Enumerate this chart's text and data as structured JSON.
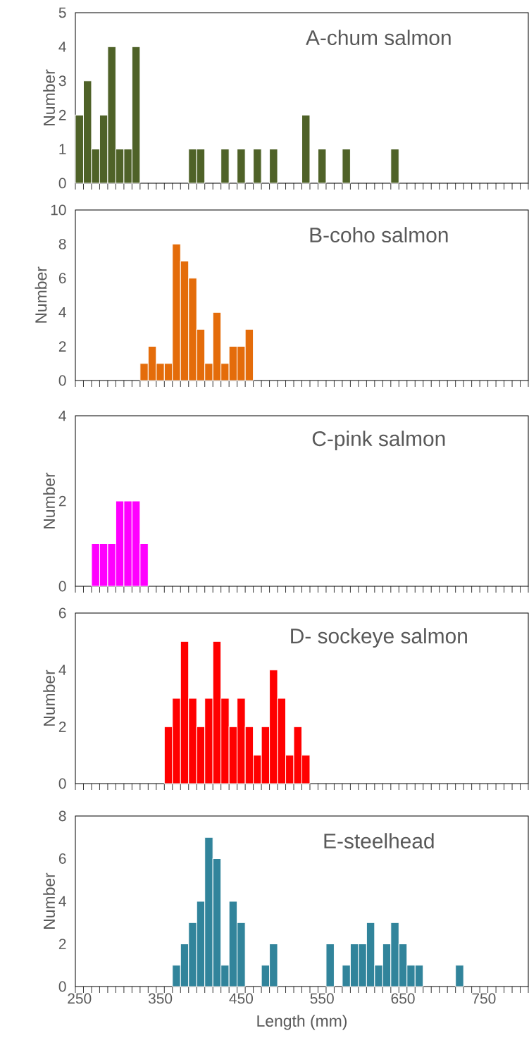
{
  "chart_data": [
    {
      "type": "bar",
      "title": "A-chum salmon",
      "ylabel": "Number",
      "color": "#4f6228",
      "tick_labels": "y",
      "categories": [
        "250",
        null,
        null,
        null,
        null,
        null,
        null,
        null,
        null,
        null,
        "350",
        null,
        null,
        null,
        null,
        null,
        null,
        null,
        null,
        null,
        "450",
        null,
        null,
        null,
        null,
        null,
        null,
        null,
        null,
        null,
        "550",
        null,
        null,
        null,
        null,
        null,
        null,
        null,
        null,
        null,
        "650",
        null,
        null,
        null,
        null,
        null,
        null,
        null,
        null,
        null,
        "750",
        null,
        null,
        null,
        null,
        null
      ],
      "values": [
        2,
        3,
        1,
        2,
        4,
        1,
        1,
        4,
        0,
        0,
        0,
        0,
        0,
        0,
        1,
        1,
        0,
        0,
        1,
        0,
        1,
        0,
        1,
        0,
        1,
        0,
        0,
        0,
        2,
        0,
        1,
        0,
        0,
        1,
        0,
        0,
        0,
        0,
        0,
        1,
        0,
        0,
        0,
        0,
        0,
        0,
        0,
        0,
        0,
        0,
        0,
        0,
        0,
        0,
        0,
        0
      ],
      "ylim": [
        0,
        5
      ],
      "yticks": [
        0,
        1,
        2,
        3,
        4,
        5
      ]
    },
    {
      "type": "bar",
      "title": "B-coho salmon",
      "ylabel": "Number",
      "color": "#e46c0a",
      "tick_labels": "y",
      "categories": [
        "250",
        null,
        null,
        null,
        null,
        null,
        null,
        null,
        null,
        null,
        "350",
        null,
        null,
        null,
        null,
        null,
        null,
        null,
        null,
        null,
        "450",
        null,
        null,
        null,
        null,
        null,
        null,
        null,
        null,
        null,
        "550",
        null,
        null,
        null,
        null,
        null,
        null,
        null,
        null,
        null,
        "650",
        null,
        null,
        null,
        null,
        null,
        null,
        null,
        null,
        null,
        "750",
        null,
        null,
        null,
        null,
        null
      ],
      "values": [
        0,
        0,
        0,
        0,
        0,
        0,
        0,
        0,
        1,
        2,
        1,
        1,
        8,
        7,
        6,
        3,
        1,
        4,
        1,
        2,
        2,
        3,
        0,
        0,
        0,
        0,
        0,
        0,
        0,
        0,
        0,
        0,
        0,
        0,
        0,
        0,
        0,
        0,
        0,
        0,
        0,
        0,
        0,
        0,
        0,
        0,
        0,
        0,
        0,
        0,
        0,
        0,
        0,
        0,
        0,
        0
      ],
      "ylim": [
        0,
        10
      ],
      "yticks": [
        0,
        2,
        4,
        6,
        8,
        10
      ]
    },
    {
      "type": "bar",
      "title": "C-pink salmon",
      "ylabel": "Number",
      "color": "#ff00ff",
      "tick_labels": "y",
      "categories": [
        "250",
        null,
        null,
        null,
        null,
        null,
        null,
        null,
        null,
        null,
        "350",
        null,
        null,
        null,
        null,
        null,
        null,
        null,
        null,
        null,
        "450",
        null,
        null,
        null,
        null,
        null,
        null,
        null,
        null,
        null,
        "550",
        null,
        null,
        null,
        null,
        null,
        null,
        null,
        null,
        null,
        "650",
        null,
        null,
        null,
        null,
        null,
        null,
        null,
        null,
        null,
        "750",
        null,
        null,
        null,
        null,
        null
      ],
      "values": [
        0,
        0,
        1,
        1,
        1,
        2,
        2,
        2,
        1,
        0,
        0,
        0,
        0,
        0,
        0,
        0,
        0,
        0,
        0,
        0,
        0,
        0,
        0,
        0,
        0,
        0,
        0,
        0,
        0,
        0,
        0,
        0,
        0,
        0,
        0,
        0,
        0,
        0,
        0,
        0,
        0,
        0,
        0,
        0,
        0,
        0,
        0,
        0,
        0,
        0,
        0,
        0,
        0,
        0,
        0,
        0
      ],
      "ylim": [
        0,
        4
      ],
      "yticks": [
        0,
        2,
        4
      ]
    },
    {
      "type": "bar",
      "title": "D- sockeye salmon",
      "ylabel": "Number",
      "color": "#ff0000",
      "tick_labels": "y",
      "categories": [
        "250",
        null,
        null,
        null,
        null,
        null,
        null,
        null,
        null,
        null,
        "350",
        null,
        null,
        null,
        null,
        null,
        null,
        null,
        null,
        null,
        "450",
        null,
        null,
        null,
        null,
        null,
        null,
        null,
        null,
        null,
        "550",
        null,
        null,
        null,
        null,
        null,
        null,
        null,
        null,
        null,
        "650",
        null,
        null,
        null,
        null,
        null,
        null,
        null,
        null,
        null,
        "750",
        null,
        null,
        null,
        null,
        null
      ],
      "values": [
        0,
        0,
        0,
        0,
        0,
        0,
        0,
        0,
        0,
        0,
        0,
        2,
        3,
        5,
        3,
        2,
        3,
        5,
        3,
        2,
        3,
        2,
        1,
        2,
        4,
        3,
        1,
        2,
        1,
        0,
        0,
        0,
        0,
        0,
        0,
        0,
        0,
        0,
        0,
        0,
        0,
        0,
        0,
        0,
        0,
        0,
        0,
        0,
        0,
        0,
        0,
        0,
        0,
        0,
        0,
        0
      ],
      "ylim": [
        0,
        6
      ],
      "yticks": [
        0,
        2,
        4,
        6
      ]
    },
    {
      "type": "bar",
      "title": "E-steelhead",
      "ylabel": "Number",
      "xlabel": "Length (mm)",
      "color": "#31849b",
      "categories": [
        "250",
        null,
        null,
        null,
        null,
        null,
        null,
        null,
        null,
        null,
        "350",
        null,
        null,
        null,
        null,
        null,
        null,
        null,
        null,
        null,
        "450",
        null,
        null,
        null,
        null,
        null,
        null,
        null,
        null,
        null,
        "550",
        null,
        null,
        null,
        null,
        null,
        null,
        null,
        null,
        null,
        "650",
        null,
        null,
        null,
        null,
        null,
        null,
        null,
        null,
        null,
        "750",
        null,
        null,
        null,
        null,
        null
      ],
      "values": [
        0,
        0,
        0,
        0,
        0,
        0,
        0,
        0,
        0,
        0,
        0,
        0,
        1,
        2,
        3,
        4,
        7,
        6,
        1,
        4,
        3,
        0,
        0,
        1,
        2,
        0,
        0,
        0,
        0,
        0,
        0,
        2,
        0,
        1,
        2,
        2,
        3,
        1,
        2,
        3,
        2,
        1,
        1,
        0,
        0,
        0,
        0,
        1,
        0,
        0,
        0,
        0,
        0,
        0,
        0,
        0
      ],
      "ylim": [
        0,
        8
      ],
      "yticks": [
        0,
        2,
        4,
        6,
        8
      ]
    }
  ]
}
